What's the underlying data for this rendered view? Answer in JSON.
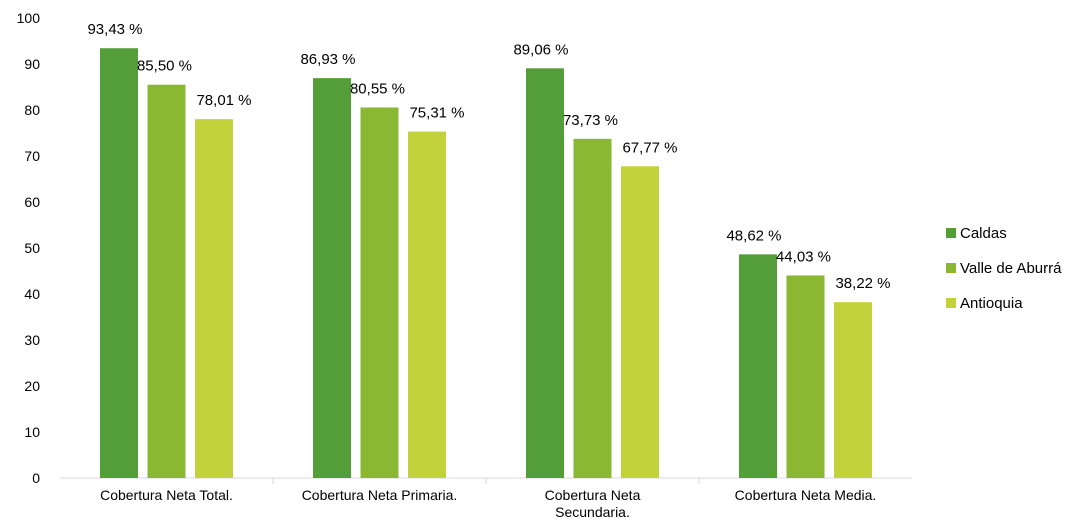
{
  "chart_data": {
    "type": "bar",
    "title": "",
    "xlabel": "",
    "ylabel": "",
    "ylim": [
      0,
      100
    ],
    "yticks": [
      0,
      10,
      20,
      30,
      40,
      50,
      60,
      70,
      80,
      90,
      100
    ],
    "grid": false,
    "legend_position": "right",
    "categories": [
      [
        "Cobertura Neta Total."
      ],
      [
        "Cobertura Neta Primaria."
      ],
      [
        "Cobertura Neta",
        "Secundaria."
      ],
      [
        "Cobertura Neta Media."
      ]
    ],
    "series": [
      {
        "name": "Caldas",
        "color": "#549e39",
        "values": [
          93.43,
          86.93,
          89.06,
          48.62
        ],
        "labels": [
          "93,43 %",
          "86,93 %",
          "89,06 %",
          "48,62 %"
        ]
      },
      {
        "name": "Valle de Aburrá",
        "color": "#8ab833",
        "values": [
          85.5,
          80.55,
          73.73,
          44.03
        ],
        "labels": [
          "85,50 %",
          "80,55 %",
          "73,73 %",
          "44,03 %"
        ]
      },
      {
        "name": "Antioquia",
        "color": "#c2d23b",
        "values": [
          78.01,
          75.31,
          67.77,
          38.22
        ],
        "labels": [
          "78,01 %",
          "75,31 %",
          "67,77 %",
          "38,22 %"
        ]
      }
    ]
  }
}
